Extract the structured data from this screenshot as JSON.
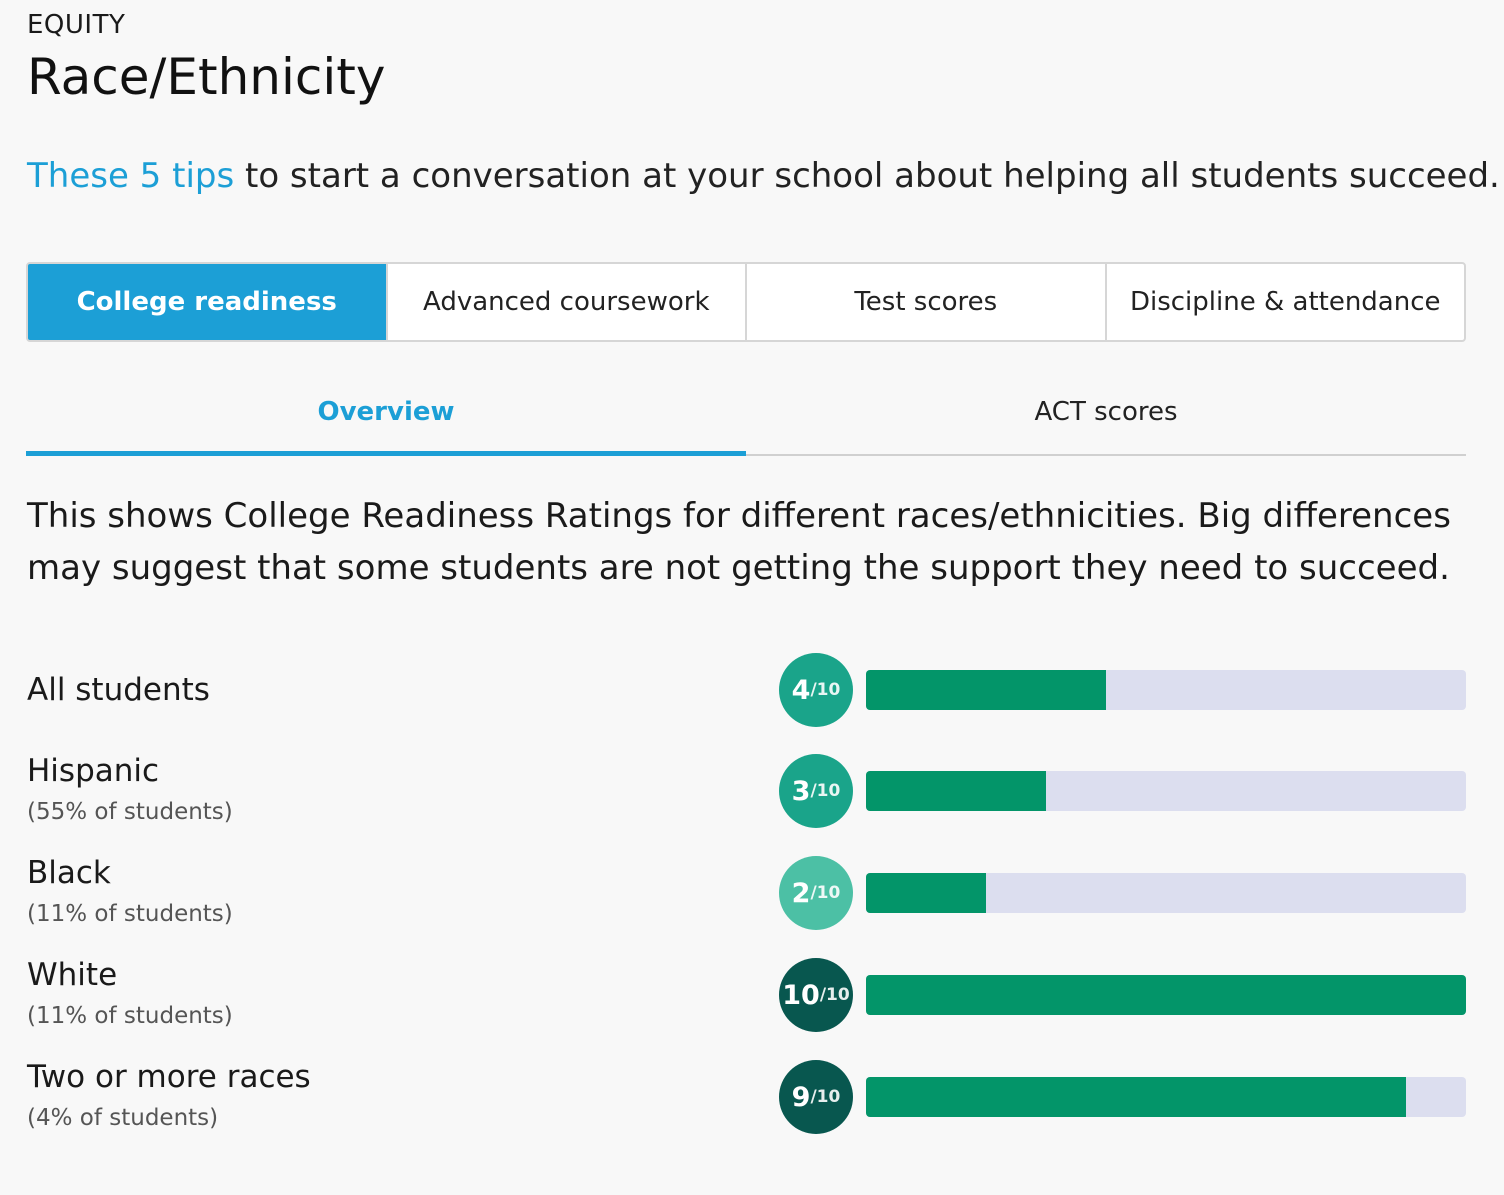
{
  "header": {
    "eyebrow": "EQUITY",
    "title": "Race/Ethnicity"
  },
  "tips": {
    "link_text": "These 5 tips",
    "rest": " to start a conversation at your school about helping all students succeed."
  },
  "tabs": [
    {
      "label": "College readiness",
      "active": true
    },
    {
      "label": "Advanced coursework",
      "active": false
    },
    {
      "label": "Test scores",
      "active": false
    },
    {
      "label": "Discipline & attendance",
      "active": false
    }
  ],
  "subtabs": [
    {
      "label": "Overview",
      "active": true
    },
    {
      "label": "ACT scores",
      "active": false
    }
  ],
  "description": "This shows College Readiness Ratings for different races/ethnicities. Big differences may suggest that some students are not getting the support they need to succeed.",
  "colors": {
    "accent": "#1c9fd6",
    "bar_fill": "#039569",
    "bar_track": "#dcdeef"
  },
  "ratings": [
    {
      "group": "All students",
      "share": "",
      "score": 4,
      "max": "/10",
      "badge_color": "#1aa48a"
    },
    {
      "group": "Hispanic",
      "share": "(55% of students)",
      "score": 3,
      "max": "/10",
      "badge_color": "#1aa48a"
    },
    {
      "group": "Black",
      "share": "(11% of students)",
      "score": 2,
      "max": "/10",
      "badge_color": "#4cc0a5"
    },
    {
      "group": "White",
      "share": "(11% of students)",
      "score": 10,
      "max": "/10",
      "badge_color": "#08574f"
    },
    {
      "group": "Two or more races",
      "share": "(4% of students)",
      "score": 9,
      "max": "/10",
      "badge_color": "#08574f"
    }
  ]
}
